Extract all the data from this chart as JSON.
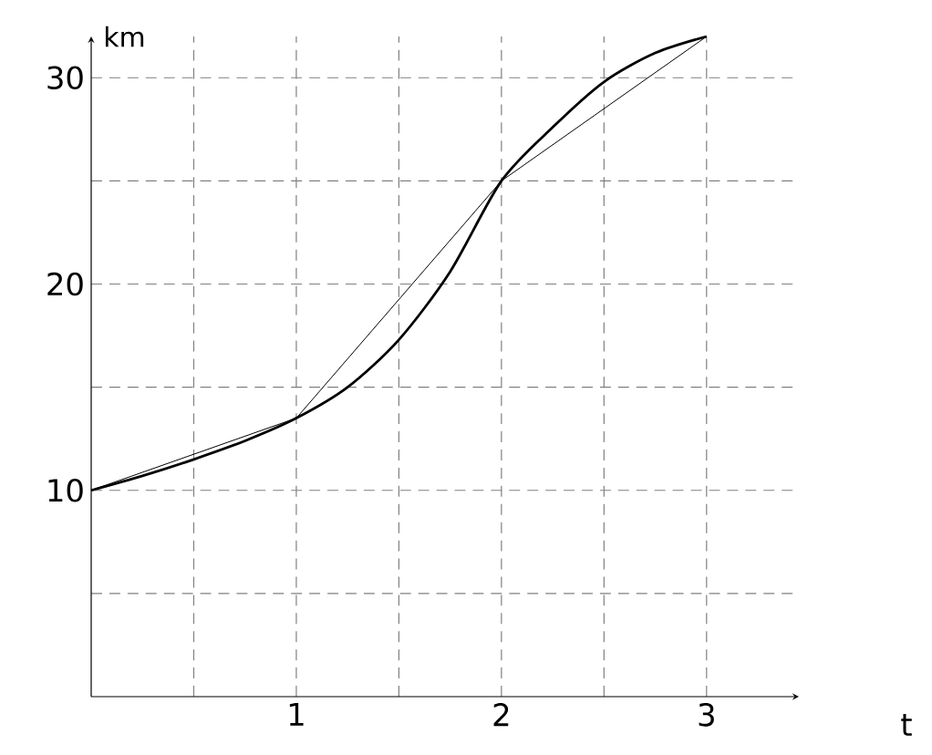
{
  "chart_data": {
    "type": "line",
    "xlabel": "t",
    "ylabel": "km",
    "xlim": [
      0,
      3.45
    ],
    "ylim": [
      0,
      32
    ],
    "xticks": [
      {
        "value": 0.5,
        "label": null
      },
      1,
      {
        "value": 1.5,
        "label": null
      },
      2,
      {
        "value": 2.5,
        "label": null
      },
      3
    ],
    "yticks": [
      {
        "value": 5,
        "label": null
      },
      10,
      {
        "value": 15,
        "label": null
      },
      20,
      {
        "value": 25,
        "label": null
      },
      30
    ],
    "grid": true,
    "line_style": "solid",
    "marker": "none",
    "series": [
      {
        "color": "#000000",
        "x": [
          0,
          0.25,
          0.5,
          0.75,
          1,
          1.25,
          1.5,
          1.75,
          2,
          2.25,
          2.5,
          2.75,
          3
        ],
        "values": [
          10,
          10.7,
          11.5,
          12.4,
          13.5,
          15,
          17.3,
          20.6,
          25,
          27.6,
          29.8,
          31.2,
          32
        ]
      },
      {
        "color": "#000000",
        "x": [
          0,
          1,
          2,
          3
        ],
        "values": [
          10,
          13.5,
          25,
          32
        ]
      }
    ]
  }
}
